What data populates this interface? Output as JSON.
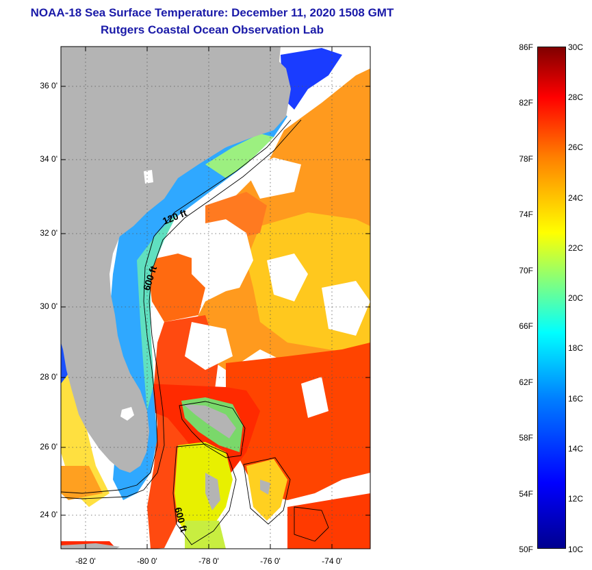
{
  "header": {
    "title": "NOAA-18 Sea Surface Temperature:  December 11, 2020 1508 GMT",
    "subtitle": "Rutgers Coastal Ocean Observation Lab"
  },
  "map": {
    "lon_range": [
      -83,
      -73
    ],
    "lat_range": [
      23,
      37.2
    ],
    "lat_ticks": [
      "36 0'",
      "34 0'",
      "32 0'",
      "30 0'",
      "28 0'",
      "26 0'",
      "24 0'"
    ],
    "lon_ticks": [
      "-82 0'",
      "-80 0'",
      "-78 0'",
      "-76 0'",
      "-74 0'"
    ],
    "contour_labels": [
      "120 ft",
      "600 ft",
      "600 ft"
    ],
    "colors": {
      "land": "#b4b4b4",
      "no_data": "#ffffff",
      "grid": "#555555"
    }
  },
  "colorbar": {
    "min_f": 50,
    "max_f": 86,
    "min_c": 10,
    "max_c": 30,
    "f_labels": [
      "86F",
      "82F",
      "78F",
      "74F",
      "70F",
      "66F",
      "62F",
      "58F",
      "54F",
      "50F"
    ],
    "c_labels": [
      "30C",
      "28C",
      "26C",
      "24C",
      "22C",
      "20C",
      "18C",
      "16C",
      "14C",
      "12C",
      "10C"
    ],
    "stops": [
      "#00008f",
      "#0000ff",
      "#0080ff",
      "#00ffff",
      "#80ff80",
      "#ffff00",
      "#ff8000",
      "#ff0000",
      "#800000"
    ]
  }
}
